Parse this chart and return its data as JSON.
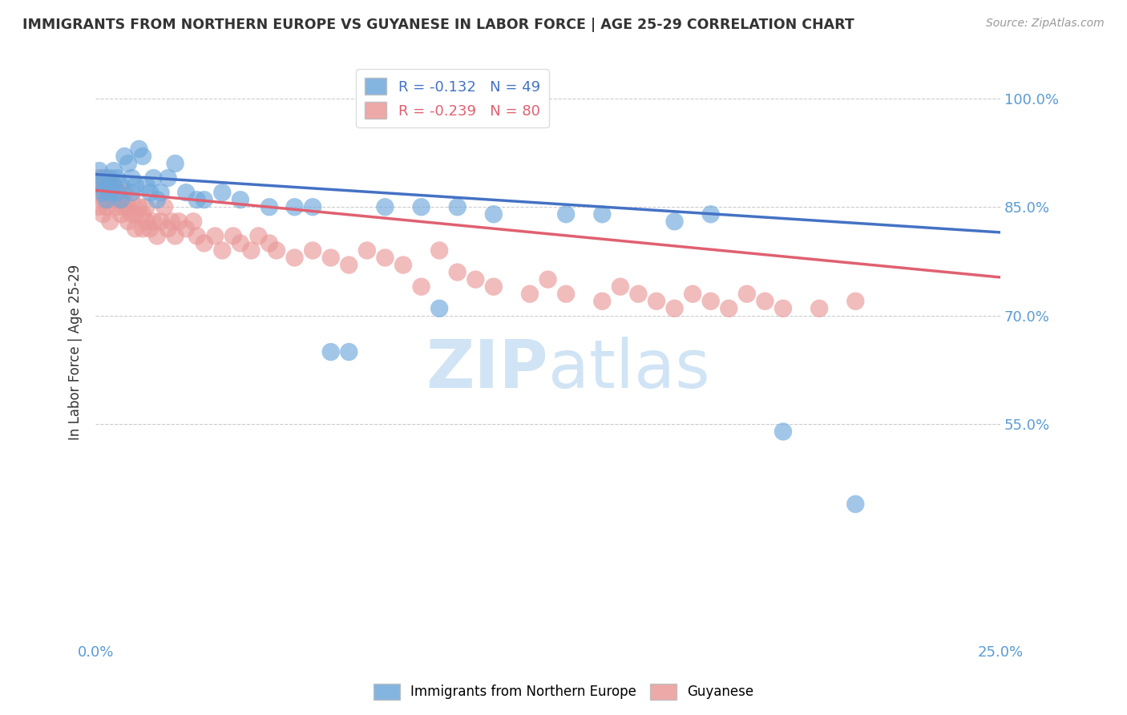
{
  "title": "IMMIGRANTS FROM NORTHERN EUROPE VS GUYANESE IN LABOR FORCE | AGE 25-29 CORRELATION CHART",
  "source": "Source: ZipAtlas.com",
  "ylabel": "In Labor Force | Age 25-29",
  "xlim": [
    0.0,
    0.25
  ],
  "ylim": [
    0.25,
    1.05
  ],
  "yticks": [
    0.55,
    0.7,
    0.85,
    1.0
  ],
  "ytick_labels": [
    "55.0%",
    "70.0%",
    "85.0%",
    "100.0%"
  ],
  "xtick_labels": [
    "0.0%",
    "",
    "",
    "",
    "",
    "25.0%"
  ],
  "grid_color": "#cccccc",
  "blue_color": "#6fa8dc",
  "pink_color": "#ea9999",
  "blue_line_color": "#4472c4",
  "pink_line_color": "#e06070",
  "legend_R_blue": "-0.132",
  "legend_N_blue": "49",
  "legend_R_pink": "-0.239",
  "legend_N_pink": "80",
  "blue_label": "Immigrants from Northern Europe",
  "pink_label": "Guyanese",
  "blue_scatter_x": [
    0.001,
    0.001,
    0.002,
    0.002,
    0.003,
    0.003,
    0.004,
    0.004,
    0.005,
    0.005,
    0.006,
    0.006,
    0.007,
    0.007,
    0.008,
    0.009,
    0.01,
    0.01,
    0.011,
    0.012,
    0.013,
    0.014,
    0.015,
    0.016,
    0.017,
    0.018,
    0.02,
    0.022,
    0.025,
    0.028,
    0.03,
    0.035,
    0.04,
    0.048,
    0.055,
    0.06,
    0.065,
    0.07,
    0.08,
    0.09,
    0.095,
    0.1,
    0.11,
    0.13,
    0.14,
    0.16,
    0.17,
    0.19,
    0.21
  ],
  "blue_scatter_y": [
    0.88,
    0.9,
    0.87,
    0.89,
    0.86,
    0.88,
    0.87,
    0.89,
    0.88,
    0.9,
    0.87,
    0.89,
    0.86,
    0.88,
    0.92,
    0.91,
    0.87,
    0.89,
    0.88,
    0.93,
    0.92,
    0.88,
    0.87,
    0.89,
    0.86,
    0.87,
    0.89,
    0.91,
    0.87,
    0.86,
    0.86,
    0.87,
    0.86,
    0.85,
    0.85,
    0.85,
    0.65,
    0.65,
    0.85,
    0.85,
    0.71,
    0.85,
    0.84,
    0.84,
    0.84,
    0.83,
    0.84,
    0.54,
    0.44
  ],
  "pink_scatter_x": [
    0.001,
    0.001,
    0.001,
    0.002,
    0.002,
    0.002,
    0.003,
    0.003,
    0.003,
    0.004,
    0.004,
    0.004,
    0.005,
    0.005,
    0.006,
    0.006,
    0.007,
    0.007,
    0.008,
    0.008,
    0.009,
    0.009,
    0.01,
    0.01,
    0.011,
    0.011,
    0.012,
    0.013,
    0.013,
    0.014,
    0.014,
    0.015,
    0.016,
    0.017,
    0.018,
    0.019,
    0.02,
    0.021,
    0.022,
    0.023,
    0.025,
    0.027,
    0.028,
    0.03,
    0.033,
    0.035,
    0.038,
    0.04,
    0.043,
    0.045,
    0.048,
    0.05,
    0.055,
    0.06,
    0.065,
    0.07,
    0.075,
    0.08,
    0.085,
    0.09,
    0.095,
    0.1,
    0.105,
    0.11,
    0.12,
    0.125,
    0.13,
    0.14,
    0.145,
    0.15,
    0.155,
    0.16,
    0.165,
    0.17,
    0.175,
    0.18,
    0.185,
    0.19,
    0.2,
    0.21
  ],
  "pink_scatter_y": [
    0.89,
    0.87,
    0.85,
    0.88,
    0.86,
    0.84,
    0.87,
    0.85,
    0.89,
    0.86,
    0.88,
    0.83,
    0.86,
    0.88,
    0.85,
    0.87,
    0.84,
    0.86,
    0.85,
    0.87,
    0.83,
    0.85,
    0.84,
    0.86,
    0.82,
    0.84,
    0.85,
    0.82,
    0.84,
    0.83,
    0.85,
    0.82,
    0.83,
    0.81,
    0.83,
    0.85,
    0.82,
    0.83,
    0.81,
    0.83,
    0.82,
    0.83,
    0.81,
    0.8,
    0.81,
    0.79,
    0.81,
    0.8,
    0.79,
    0.81,
    0.8,
    0.79,
    0.78,
    0.79,
    0.78,
    0.77,
    0.79,
    0.78,
    0.77,
    0.74,
    0.79,
    0.76,
    0.75,
    0.74,
    0.73,
    0.75,
    0.73,
    0.72,
    0.74,
    0.73,
    0.72,
    0.71,
    0.73,
    0.72,
    0.71,
    0.73,
    0.72,
    0.71,
    0.71,
    0.72
  ],
  "background_color": "#ffffff",
  "title_color": "#333333",
  "axis_color": "#5b9bd5",
  "watermark_color": "#d0e4f5",
  "watermark_fontsize": 60
}
